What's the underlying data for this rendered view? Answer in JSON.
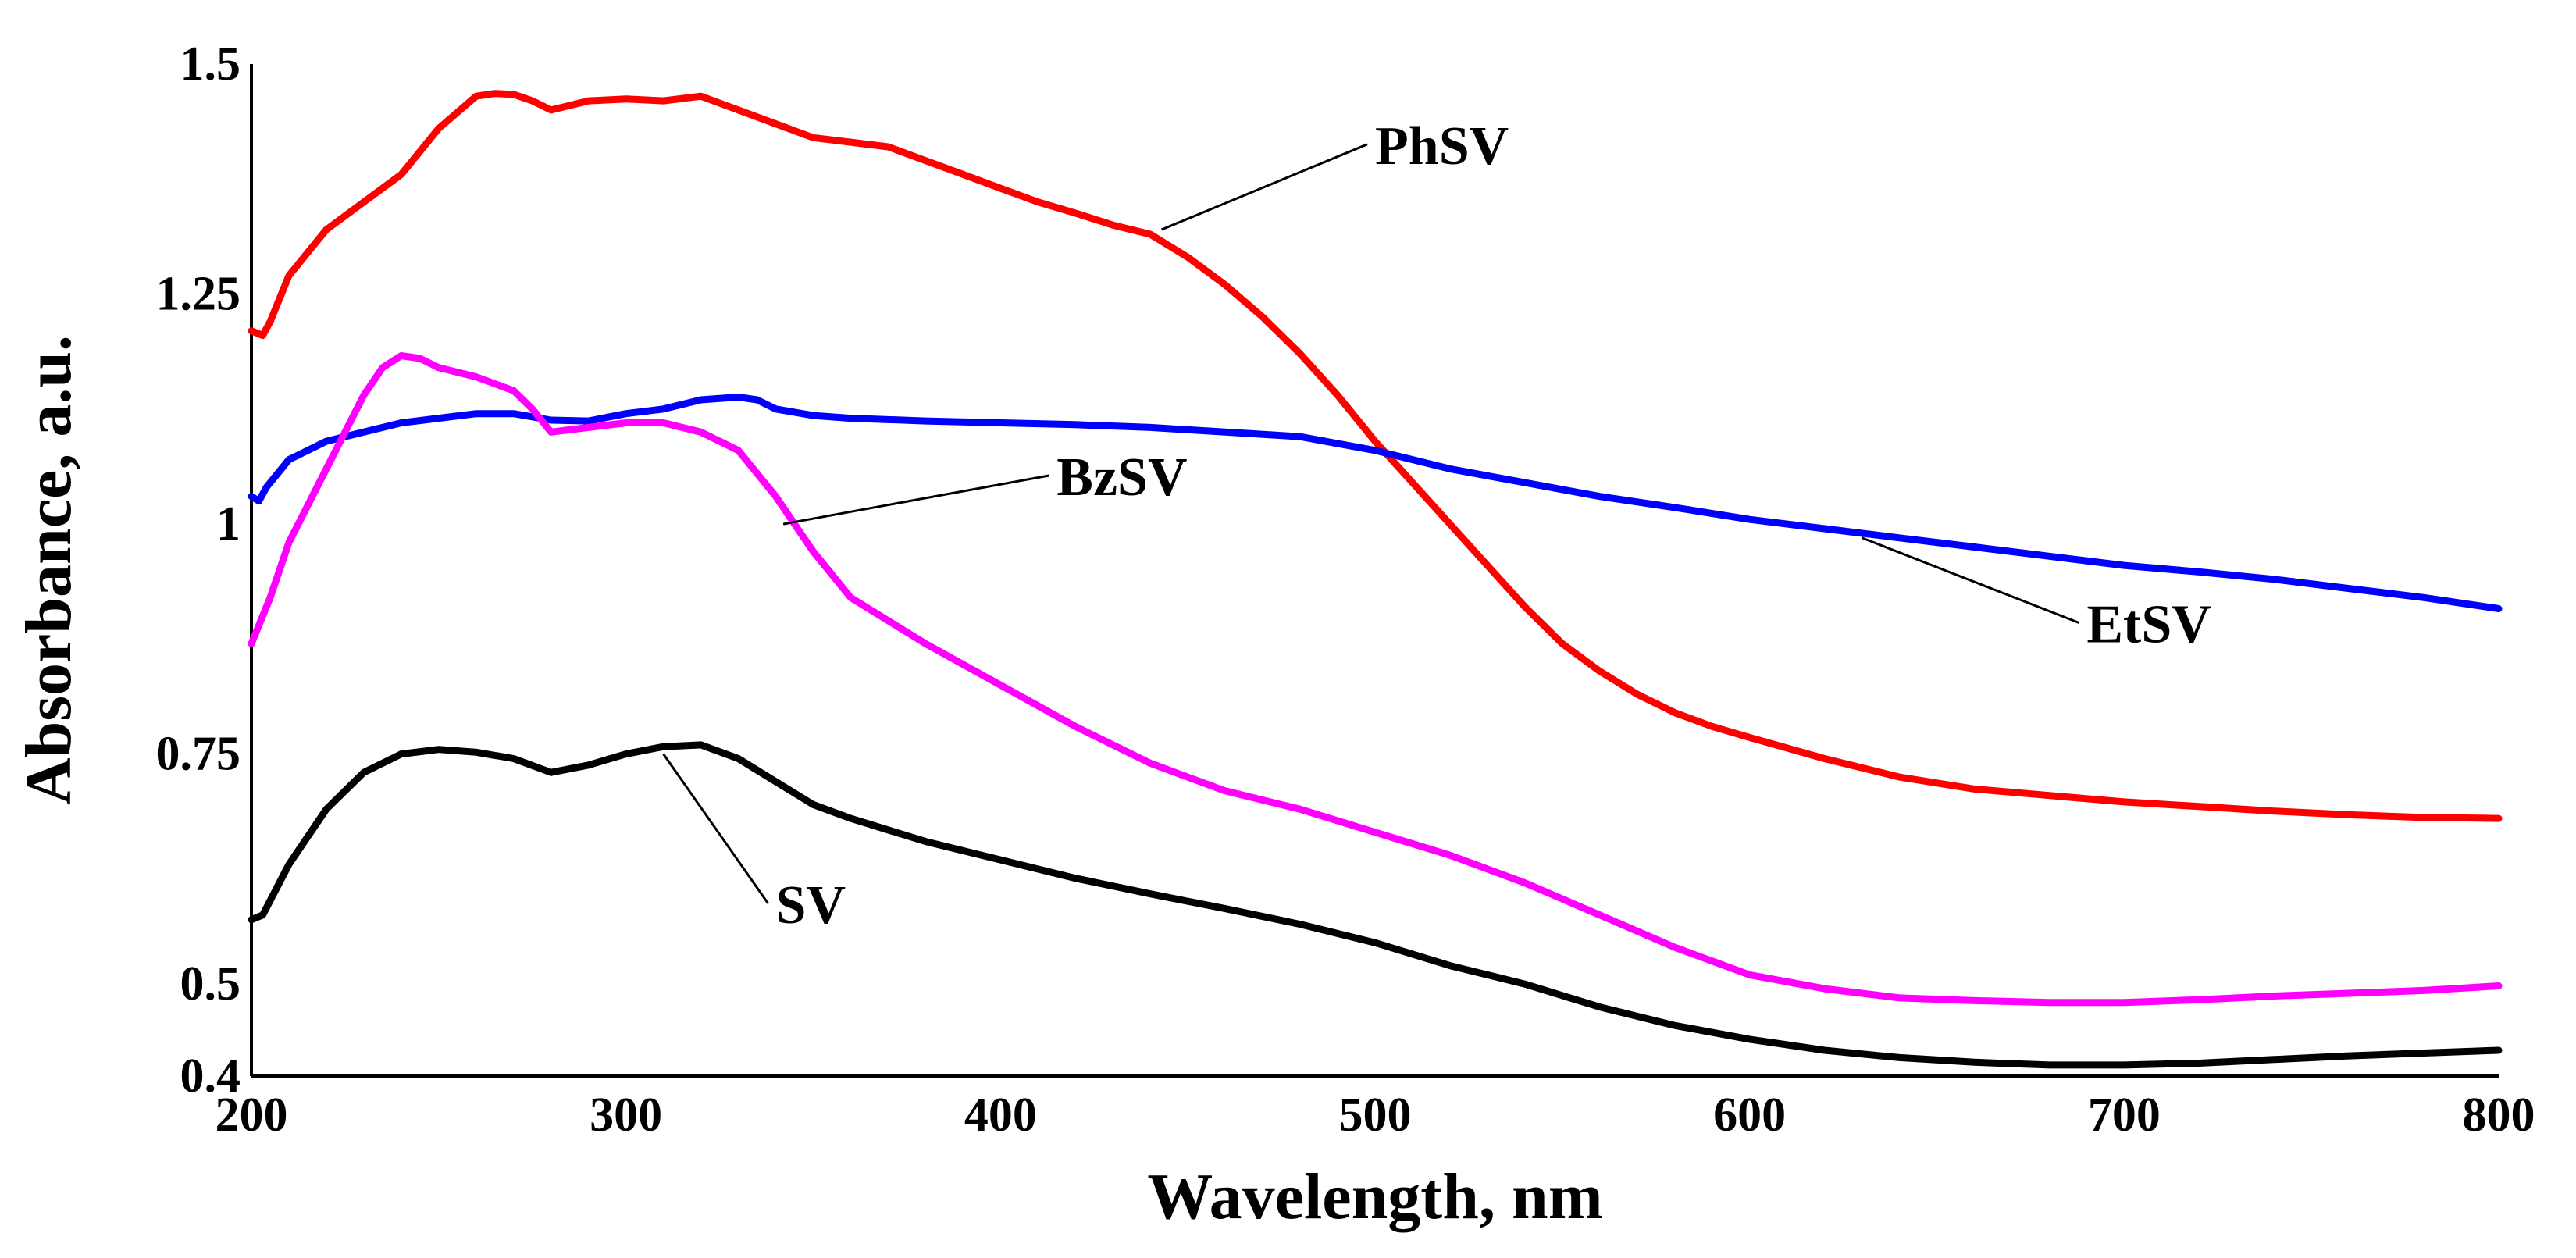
{
  "chart_data": {
    "type": "line",
    "title": "",
    "xlabel": "Wavelength, nm",
    "ylabel": "Absorbance, a.u.",
    "xlim": [
      200,
      800
    ],
    "ylim": [
      0.4,
      1.5
    ],
    "grid": false,
    "x_ticks": [
      200,
      300,
      400,
      500,
      600,
      700,
      800
    ],
    "x_tick_labels": [
      "200",
      "300",
      "400",
      "500",
      "600",
      "700",
      "800"
    ],
    "y_ticks": [
      0.4,
      0.5,
      0.75,
      1.0,
      1.25,
      1.5
    ],
    "y_tick_labels": [
      "0.4",
      "0.5",
      "0.75",
      "1",
      "1.25",
      "1.5"
    ],
    "series": [
      {
        "name": "PhSV",
        "color": "#ff0000",
        "label_anchor": [
          443,
          1.32
        ],
        "label_pos": [
          500,
          1.4
        ],
        "points": [
          [
            200,
            1.21
          ],
          [
            203,
            1.205
          ],
          [
            205,
            1.22
          ],
          [
            210,
            1.27
          ],
          [
            220,
            1.32
          ],
          [
            230,
            1.35
          ],
          [
            240,
            1.38
          ],
          [
            250,
            1.43
          ],
          [
            260,
            1.465
          ],
          [
            265,
            1.468
          ],
          [
            270,
            1.467
          ],
          [
            275,
            1.46
          ],
          [
            280,
            1.45
          ],
          [
            285,
            1.455
          ],
          [
            290,
            1.46
          ],
          [
            300,
            1.462
          ],
          [
            310,
            1.46
          ],
          [
            320,
            1.465
          ],
          [
            330,
            1.45
          ],
          [
            340,
            1.435
          ],
          [
            350,
            1.42
          ],
          [
            360,
            1.415
          ],
          [
            370,
            1.41
          ],
          [
            380,
            1.395
          ],
          [
            390,
            1.38
          ],
          [
            400,
            1.365
          ],
          [
            410,
            1.35
          ],
          [
            420,
            1.338
          ],
          [
            430,
            1.325
          ],
          [
            440,
            1.315
          ],
          [
            450,
            1.29
          ],
          [
            460,
            1.26
          ],
          [
            470,
            1.225
          ],
          [
            480,
            1.185
          ],
          [
            490,
            1.14
          ],
          [
            500,
            1.09
          ],
          [
            510,
            1.045
          ],
          [
            520,
            1.0
          ],
          [
            530,
            0.955
          ],
          [
            540,
            0.91
          ],
          [
            550,
            0.87
          ],
          [
            560,
            0.84
          ],
          [
            570,
            0.815
          ],
          [
            580,
            0.795
          ],
          [
            590,
            0.78
          ],
          [
            600,
            0.768
          ],
          [
            620,
            0.745
          ],
          [
            640,
            0.725
          ],
          [
            660,
            0.712
          ],
          [
            680,
            0.705
          ],
          [
            700,
            0.698
          ],
          [
            720,
            0.693
          ],
          [
            740,
            0.688
          ],
          [
            760,
            0.684
          ],
          [
            780,
            0.681
          ],
          [
            800,
            0.68
          ]
        ]
      },
      {
        "name": "EtSV",
        "color": "#0000ff",
        "label_anchor": [
          630,
          0.985
        ],
        "label_pos": [
          690,
          0.88
        ],
        "points": [
          [
            200,
            1.03
          ],
          [
            202,
            1.025
          ],
          [
            204,
            1.04
          ],
          [
            210,
            1.07
          ],
          [
            220,
            1.09
          ],
          [
            230,
            1.1
          ],
          [
            240,
            1.11
          ],
          [
            250,
            1.115
          ],
          [
            260,
            1.12
          ],
          [
            270,
            1.12
          ],
          [
            280,
            1.113
          ],
          [
            290,
            1.112
          ],
          [
            300,
            1.12
          ],
          [
            310,
            1.125
          ],
          [
            320,
            1.135
          ],
          [
            330,
            1.138
          ],
          [
            335,
            1.135
          ],
          [
            340,
            1.125
          ],
          [
            350,
            1.118
          ],
          [
            360,
            1.115
          ],
          [
            380,
            1.112
          ],
          [
            400,
            1.11
          ],
          [
            420,
            1.108
          ],
          [
            440,
            1.105
          ],
          [
            460,
            1.1
          ],
          [
            480,
            1.095
          ],
          [
            500,
            1.08
          ],
          [
            520,
            1.06
          ],
          [
            540,
            1.045
          ],
          [
            560,
            1.03
          ],
          [
            580,
            1.018
          ],
          [
            600,
            1.005
          ],
          [
            620,
            0.995
          ],
          [
            640,
            0.985
          ],
          [
            660,
            0.975
          ],
          [
            680,
            0.965
          ],
          [
            700,
            0.955
          ],
          [
            720,
            0.948
          ],
          [
            740,
            0.94
          ],
          [
            760,
            0.93
          ],
          [
            780,
            0.92
          ],
          [
            800,
            0.908
          ]
        ]
      },
      {
        "name": "BzSV",
        "color": "#ff00ff",
        "label_anchor": [
          342,
          1.0
        ],
        "label_pos": [
          415,
          1.04
        ],
        "points": [
          [
            200,
            0.87
          ],
          [
            205,
            0.92
          ],
          [
            210,
            0.98
          ],
          [
            220,
            1.06
          ],
          [
            230,
            1.14
          ],
          [
            235,
            1.17
          ],
          [
            240,
            1.183
          ],
          [
            245,
            1.18
          ],
          [
            250,
            1.17
          ],
          [
            260,
            1.16
          ],
          [
            270,
            1.145
          ],
          [
            275,
            1.125
          ],
          [
            280,
            1.1
          ],
          [
            290,
            1.105
          ],
          [
            300,
            1.11
          ],
          [
            310,
            1.11
          ],
          [
            320,
            1.1
          ],
          [
            330,
            1.08
          ],
          [
            340,
            1.03
          ],
          [
            350,
            0.97
          ],
          [
            360,
            0.92
          ],
          [
            370,
            0.895
          ],
          [
            380,
            0.87
          ],
          [
            400,
            0.825
          ],
          [
            420,
            0.78
          ],
          [
            440,
            0.74
          ],
          [
            460,
            0.71
          ],
          [
            480,
            0.69
          ],
          [
            500,
            0.665
          ],
          [
            520,
            0.64
          ],
          [
            540,
            0.61
          ],
          [
            560,
            0.575
          ],
          [
            580,
            0.54
          ],
          [
            600,
            0.51
          ],
          [
            620,
            0.495
          ],
          [
            640,
            0.485
          ],
          [
            660,
            0.482
          ],
          [
            680,
            0.48
          ],
          [
            700,
            0.48
          ],
          [
            720,
            0.483
          ],
          [
            740,
            0.487
          ],
          [
            760,
            0.49
          ],
          [
            780,
            0.493
          ],
          [
            800,
            0.498
          ]
        ]
      },
      {
        "name": "SV",
        "color": "#000000",
        "label_anchor": [
          310,
          0.75
        ],
        "label_pos": [
          340,
          0.575
        ],
        "points": [
          [
            200,
            0.57
          ],
          [
            203,
            0.575
          ],
          [
            210,
            0.63
          ],
          [
            220,
            0.69
          ],
          [
            230,
            0.73
          ],
          [
            240,
            0.75
          ],
          [
            250,
            0.755
          ],
          [
            260,
            0.752
          ],
          [
            270,
            0.745
          ],
          [
            280,
            0.73
          ],
          [
            290,
            0.738
          ],
          [
            300,
            0.75
          ],
          [
            310,
            0.758
          ],
          [
            320,
            0.76
          ],
          [
            330,
            0.745
          ],
          [
            340,
            0.72
          ],
          [
            350,
            0.695
          ],
          [
            360,
            0.68
          ],
          [
            380,
            0.655
          ],
          [
            400,
            0.635
          ],
          [
            420,
            0.615
          ],
          [
            440,
            0.598
          ],
          [
            460,
            0.582
          ],
          [
            480,
            0.565
          ],
          [
            500,
            0.545
          ],
          [
            520,
            0.52
          ],
          [
            540,
            0.5
          ],
          [
            560,
            0.475
          ],
          [
            580,
            0.455
          ],
          [
            600,
            0.44
          ],
          [
            620,
            0.428
          ],
          [
            640,
            0.42
          ],
          [
            660,
            0.415
          ],
          [
            680,
            0.412
          ],
          [
            700,
            0.412
          ],
          [
            720,
            0.414
          ],
          [
            740,
            0.418
          ],
          [
            760,
            0.422
          ],
          [
            780,
            0.425
          ],
          [
            800,
            0.428
          ]
        ]
      }
    ]
  }
}
